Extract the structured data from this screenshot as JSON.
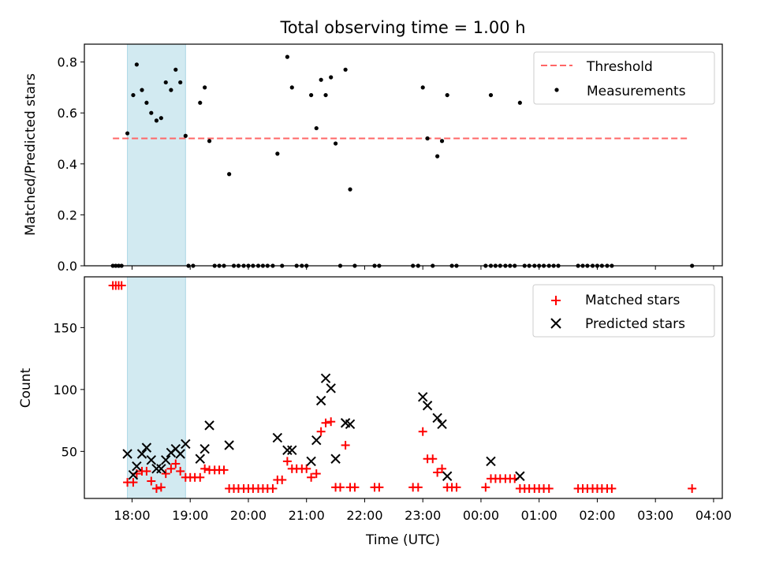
{
  "colors": {
    "highlight": "#add8e6",
    "threshold": "#ff6666",
    "matched": "#ff0000",
    "predicted": "#000000",
    "measurements": "#000000"
  },
  "chart_data": [
    {
      "type": "scatter",
      "title": "Total observing time = 1.00 h",
      "xlabel": "",
      "ylabel": "Matched/Predicted stars",
      "x_unit": "hours since 18:00 UTC (axis starts 17:00 on day 1)",
      "xlim": [
        -0.82,
        10.15
      ],
      "ylim": [
        0.0,
        0.87
      ],
      "yticks": [
        0.0,
        0.2,
        0.4,
        0.6,
        0.8
      ],
      "ytick_labels": [
        "0.0",
        "0.2",
        "0.4",
        "0.6",
        "0.8"
      ],
      "highlight_span": [
        -0.08,
        0.92
      ],
      "legend": {
        "position": "top-right",
        "entries": [
          "Threshold",
          "Measurements"
        ]
      },
      "series": [
        {
          "name": "Threshold",
          "kind": "hline",
          "y": 0.5,
          "x": [
            -0.33,
            9.55
          ],
          "style": "dashed"
        },
        {
          "name": "Measurements",
          "kind": "scatter",
          "points": [
            [
              -0.33,
              0.0
            ],
            [
              -0.28,
              0.0
            ],
            [
              -0.23,
              0.0
            ],
            [
              -0.18,
              0.0
            ],
            [
              -0.08,
              0.52
            ],
            [
              0.02,
              0.67
            ],
            [
              0.08,
              0.79
            ],
            [
              0.17,
              0.69
            ],
            [
              0.25,
              0.64
            ],
            [
              0.33,
              0.6
            ],
            [
              0.42,
              0.57
            ],
            [
              0.5,
              0.58
            ],
            [
              0.58,
              0.72
            ],
            [
              0.67,
              0.69
            ],
            [
              0.75,
              0.77
            ],
            [
              0.83,
              0.72
            ],
            [
              0.92,
              0.51
            ],
            [
              0.97,
              0.0
            ],
            [
              1.05,
              0.0
            ],
            [
              1.17,
              0.64
            ],
            [
              1.25,
              0.7
            ],
            [
              1.33,
              0.49
            ],
            [
              1.42,
              0.0
            ],
            [
              1.5,
              0.0
            ],
            [
              1.58,
              0.0
            ],
            [
              1.67,
              0.36
            ],
            [
              1.75,
              0.0
            ],
            [
              1.83,
              0.0
            ],
            [
              1.92,
              0.0
            ],
            [
              2.0,
              0.0
            ],
            [
              2.08,
              0.0
            ],
            [
              2.17,
              0.0
            ],
            [
              2.25,
              0.0
            ],
            [
              2.33,
              0.0
            ],
            [
              2.42,
              0.0
            ],
            [
              2.5,
              0.44
            ],
            [
              2.58,
              0.0
            ],
            [
              2.67,
              0.82
            ],
            [
              2.75,
              0.7
            ],
            [
              2.83,
              0.0
            ],
            [
              2.92,
              0.0
            ],
            [
              3.0,
              0.0
            ],
            [
              3.08,
              0.67
            ],
            [
              3.17,
              0.54
            ],
            [
              3.25,
              0.73
            ],
            [
              3.33,
              0.67
            ],
            [
              3.42,
              0.74
            ],
            [
              3.5,
              0.48
            ],
            [
              3.58,
              0.0
            ],
            [
              3.67,
              0.77
            ],
            [
              3.75,
              0.3
            ],
            [
              3.83,
              0.0
            ],
            [
              4.17,
              0.0
            ],
            [
              4.25,
              0.0
            ],
            [
              4.83,
              0.0
            ],
            [
              4.92,
              0.0
            ],
            [
              5.0,
              0.7
            ],
            [
              5.08,
              0.5
            ],
            [
              5.17,
              0.0
            ],
            [
              5.25,
              0.43
            ],
            [
              5.33,
              0.49
            ],
            [
              5.42,
              0.67
            ],
            [
              5.5,
              0.0
            ],
            [
              5.58,
              0.0
            ],
            [
              6.08,
              0.0
            ],
            [
              6.17,
              0.0
            ],
            [
              6.17,
              0.67
            ],
            [
              6.25,
              0.0
            ],
            [
              6.33,
              0.0
            ],
            [
              6.42,
              0.0
            ],
            [
              6.5,
              0.0
            ],
            [
              6.58,
              0.0
            ],
            [
              6.67,
              0.64
            ],
            [
              6.75,
              0.0
            ],
            [
              6.83,
              0.0
            ],
            [
              6.92,
              0.0
            ],
            [
              7.0,
              0.0
            ],
            [
              7.08,
              0.0
            ],
            [
              7.17,
              0.0
            ],
            [
              7.25,
              0.0
            ],
            [
              7.33,
              0.0
            ],
            [
              7.67,
              0.0
            ],
            [
              7.75,
              0.0
            ],
            [
              7.83,
              0.0
            ],
            [
              7.92,
              0.0
            ],
            [
              8.0,
              0.0
            ],
            [
              8.08,
              0.0
            ],
            [
              8.17,
              0.0
            ],
            [
              8.25,
              0.0
            ],
            [
              9.63,
              0.0
            ]
          ]
        }
      ]
    },
    {
      "type": "scatter",
      "title": "",
      "xlabel": "Time (UTC)",
      "ylabel": "Count",
      "x_unit": "hours since 18:00 UTC",
      "xlim": [
        -0.82,
        10.15
      ],
      "ylim": [
        12,
        191
      ],
      "yticks": [
        50,
        100,
        150
      ],
      "ytick_labels": [
        "50",
        "100",
        "150"
      ],
      "xticks": [
        0,
        1,
        2,
        3,
        4,
        5,
        6,
        7,
        8,
        9,
        10
      ],
      "xtick_labels": [
        "18:00",
        "19:00",
        "20:00",
        "21:00",
        "22:00",
        "23:00",
        "00:00",
        "01:00",
        "02:00",
        "03:00",
        "04:00"
      ],
      "highlight_span": [
        -0.08,
        0.92
      ],
      "legend": {
        "position": "top-right",
        "entries": [
          "Matched stars",
          "Predicted stars"
        ]
      },
      "series": [
        {
          "name": "Matched stars",
          "marker": "+",
          "points": [
            [
              -0.33,
              184
            ],
            [
              -0.28,
              184
            ],
            [
              -0.23,
              184
            ],
            [
              -0.18,
              184
            ],
            [
              -0.08,
              25
            ],
            [
              0.02,
              25
            ],
            [
              0.08,
              32
            ],
            [
              0.17,
              34
            ],
            [
              0.25,
              34
            ],
            [
              0.33,
              26
            ],
            [
              0.42,
              20
            ],
            [
              0.5,
              21
            ],
            [
              0.58,
              32
            ],
            [
              0.67,
              36
            ],
            [
              0.75,
              40
            ],
            [
              0.83,
              34
            ],
            [
              0.92,
              29
            ],
            [
              1.0,
              29
            ],
            [
              1.08,
              29
            ],
            [
              1.17,
              29
            ],
            [
              1.25,
              36
            ],
            [
              1.33,
              35
            ],
            [
              1.42,
              35
            ],
            [
              1.5,
              35
            ],
            [
              1.58,
              35
            ],
            [
              1.67,
              20
            ],
            [
              1.75,
              20
            ],
            [
              1.83,
              20
            ],
            [
              1.92,
              20
            ],
            [
              2.0,
              20
            ],
            [
              2.08,
              20
            ],
            [
              2.17,
              20
            ],
            [
              2.25,
              20
            ],
            [
              2.33,
              20
            ],
            [
              2.42,
              20
            ],
            [
              2.5,
              27
            ],
            [
              2.58,
              27
            ],
            [
              2.67,
              42
            ],
            [
              2.75,
              36
            ],
            [
              2.83,
              36
            ],
            [
              2.92,
              36
            ],
            [
              3.0,
              36
            ],
            [
              3.08,
              29
            ],
            [
              3.17,
              32
            ],
            [
              3.25,
              66
            ],
            [
              3.33,
              73
            ],
            [
              3.42,
              74
            ],
            [
              3.5,
              21
            ],
            [
              3.58,
              21
            ],
            [
              3.67,
              55
            ],
            [
              3.75,
              21
            ],
            [
              3.83,
              21
            ],
            [
              4.17,
              21
            ],
            [
              4.25,
              21
            ],
            [
              4.83,
              21
            ],
            [
              4.92,
              21
            ],
            [
              5.0,
              66
            ],
            [
              5.08,
              44
            ],
            [
              5.17,
              44
            ],
            [
              5.25,
              33
            ],
            [
              5.33,
              36
            ],
            [
              5.42,
              21
            ],
            [
              5.5,
              21
            ],
            [
              5.58,
              21
            ],
            [
              6.08,
              21
            ],
            [
              6.17,
              28
            ],
            [
              6.25,
              28
            ],
            [
              6.33,
              28
            ],
            [
              6.42,
              28
            ],
            [
              6.5,
              28
            ],
            [
              6.58,
              28
            ],
            [
              6.67,
              20
            ],
            [
              6.75,
              20
            ],
            [
              6.83,
              20
            ],
            [
              6.92,
              20
            ],
            [
              7.0,
              20
            ],
            [
              7.08,
              20
            ],
            [
              7.17,
              20
            ],
            [
              7.67,
              20
            ],
            [
              7.75,
              20
            ],
            [
              7.83,
              20
            ],
            [
              7.92,
              20
            ],
            [
              8.0,
              20
            ],
            [
              8.08,
              20
            ],
            [
              8.17,
              20
            ],
            [
              8.25,
              20
            ],
            [
              9.63,
              20
            ]
          ]
        },
        {
          "name": "Predicted stars",
          "marker": "x",
          "points": [
            [
              -0.08,
              48
            ],
            [
              0.02,
              31
            ],
            [
              0.08,
              38
            ],
            [
              0.17,
              48
            ],
            [
              0.25,
              53
            ],
            [
              0.33,
              43
            ],
            [
              0.42,
              36
            ],
            [
              0.5,
              36
            ],
            [
              0.58,
              43
            ],
            [
              0.67,
              49
            ],
            [
              0.75,
              52
            ],
            [
              0.83,
              48
            ],
            [
              0.92,
              56
            ],
            [
              1.17,
              44
            ],
            [
              1.25,
              52
            ],
            [
              1.33,
              71
            ],
            [
              1.67,
              55
            ],
            [
              2.5,
              61
            ],
            [
              2.67,
              51
            ],
            [
              2.75,
              51
            ],
            [
              3.08,
              42
            ],
            [
              3.17,
              59
            ],
            [
              3.25,
              91
            ],
            [
              3.33,
              109
            ],
            [
              3.42,
              101
            ],
            [
              3.5,
              44
            ],
            [
              3.67,
              73
            ],
            [
              3.75,
              72
            ],
            [
              5.0,
              94
            ],
            [
              5.08,
              87
            ],
            [
              5.25,
              77
            ],
            [
              5.33,
              72
            ],
            [
              5.42,
              30
            ],
            [
              6.17,
              42
            ],
            [
              6.67,
              30
            ]
          ]
        }
      ]
    }
  ]
}
